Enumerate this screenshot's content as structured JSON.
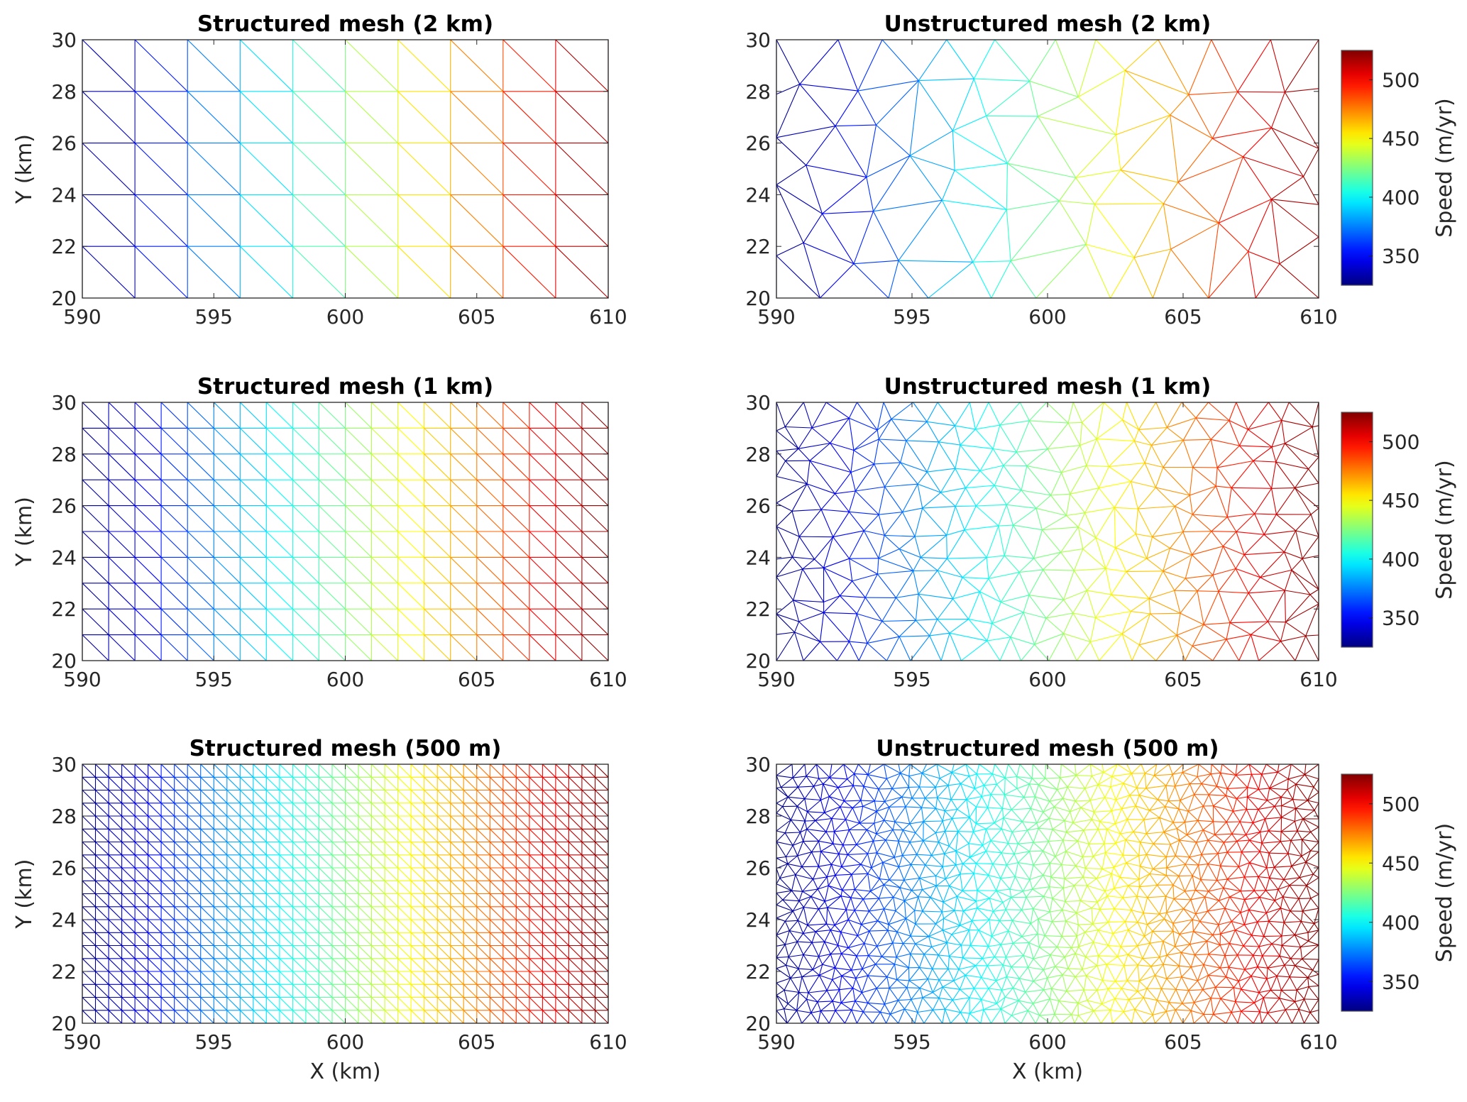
{
  "chart_data": [
    {
      "type": "mesh",
      "mesh": "structured",
      "resolution_km": 2,
      "title": "Structured mesh (2 km)",
      "xlabel": "",
      "ylabel": "Y (km)",
      "xlim": [
        590,
        610
      ],
      "ylim": [
        20,
        30
      ],
      "xticks": [
        "590",
        "595",
        "600",
        "605",
        "610"
      ],
      "yticks": [
        "20",
        "22",
        "24",
        "26",
        "28",
        "30"
      ],
      "colormap": "jet",
      "speed_field": {
        "at_x590": 325,
        "at_x610": 525
      }
    },
    {
      "type": "mesh",
      "mesh": "unstructured",
      "resolution_km": 2,
      "title": "Unstructured mesh (2 km)",
      "xlabel": "",
      "ylabel": "",
      "xlim": [
        590,
        610
      ],
      "ylim": [
        20,
        30
      ],
      "xticks": [
        "590",
        "595",
        "600",
        "605",
        "610"
      ],
      "yticks": [
        "20",
        "22",
        "24",
        "26",
        "28",
        "30"
      ],
      "colormap": "jet",
      "speed_field": {
        "at_x590": 325,
        "at_x610": 525
      },
      "colorbar": {
        "label": "Speed (m/yr)",
        "clim": [
          325,
          525
        ],
        "ticks": [
          "350",
          "400",
          "450",
          "500"
        ]
      }
    },
    {
      "type": "mesh",
      "mesh": "structured",
      "resolution_km": 1,
      "title": "Structured mesh (1 km)",
      "xlabel": "",
      "ylabel": "Y (km)",
      "xlim": [
        590,
        610
      ],
      "ylim": [
        20,
        30
      ],
      "xticks": [
        "590",
        "595",
        "600",
        "605",
        "610"
      ],
      "yticks": [
        "20",
        "22",
        "24",
        "26",
        "28",
        "30"
      ],
      "colormap": "jet",
      "speed_field": {
        "at_x590": 325,
        "at_x610": 525
      }
    },
    {
      "type": "mesh",
      "mesh": "unstructured",
      "resolution_km": 1,
      "title": "Unstructured mesh (1 km)",
      "xlabel": "",
      "ylabel": "",
      "xlim": [
        590,
        610
      ],
      "ylim": [
        20,
        30
      ],
      "xticks": [
        "590",
        "595",
        "600",
        "605",
        "610"
      ],
      "yticks": [
        "20",
        "22",
        "24",
        "26",
        "28",
        "30"
      ],
      "colormap": "jet",
      "speed_field": {
        "at_x590": 325,
        "at_x610": 525
      },
      "colorbar": {
        "label": "Speed (m/yr)",
        "clim": [
          325,
          525
        ],
        "ticks": [
          "350",
          "400",
          "450",
          "500"
        ]
      }
    },
    {
      "type": "mesh",
      "mesh": "structured",
      "resolution_km": 0.5,
      "title": "Structured mesh (500 m)",
      "xlabel": "X (km)",
      "ylabel": "Y (km)",
      "xlim": [
        590,
        610
      ],
      "ylim": [
        20,
        30
      ],
      "xticks": [
        "590",
        "595",
        "600",
        "605",
        "610"
      ],
      "yticks": [
        "20",
        "22",
        "24",
        "26",
        "28",
        "30"
      ],
      "colormap": "jet",
      "speed_field": {
        "at_x590": 325,
        "at_x610": 525
      }
    },
    {
      "type": "mesh",
      "mesh": "unstructured",
      "resolution_km": 0.5,
      "title": "Unstructured mesh (500 m)",
      "xlabel": "X (km)",
      "ylabel": "",
      "xlim": [
        590,
        610
      ],
      "ylim": [
        20,
        30
      ],
      "xticks": [
        "590",
        "595",
        "600",
        "605",
        "610"
      ],
      "yticks": [
        "20",
        "22",
        "24",
        "26",
        "28",
        "30"
      ],
      "colormap": "jet",
      "speed_field": {
        "at_x590": 325,
        "at_x610": 525
      },
      "colorbar": {
        "label": "Speed (m/yr)",
        "clim": [
          325,
          525
        ],
        "ticks": [
          "350",
          "400",
          "450",
          "500"
        ]
      }
    }
  ]
}
